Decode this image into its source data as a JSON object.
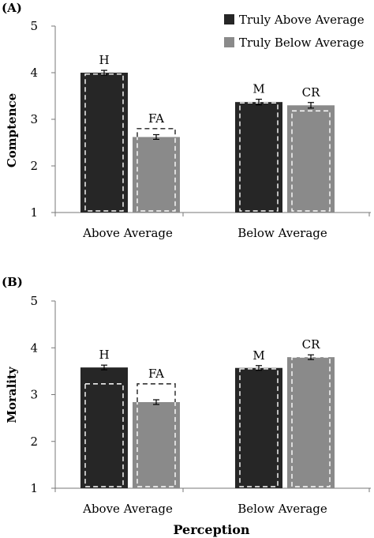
{
  "chart_data": [
    {
      "type": "bar",
      "panel_label": "(A)",
      "ylabel": "Comptence",
      "xlabel": "",
      "ylim": [
        1,
        5
      ],
      "yticks": [
        "1",
        "2",
        "3",
        "4",
        "5"
      ],
      "categories": [
        "Above Average",
        "Below Average"
      ],
      "series": [
        {
          "name": "Truly Above Average",
          "color": "#262626",
          "values": [
            4.0,
            3.37
          ],
          "errors": [
            0.05,
            0.06
          ],
          "dashed_values": [
            3.97,
            3.35
          ]
        },
        {
          "name": "Truly Below Average",
          "color": "#8a8a8a",
          "values": [
            2.62,
            3.3
          ],
          "errors": [
            0.05,
            0.06
          ],
          "dashed_values": [
            2.8,
            3.18
          ]
        }
      ],
      "annotations": [
        [
          "H",
          "FA"
        ],
        [
          "M",
          "CR"
        ]
      ],
      "legend": "top-right",
      "grid": false
    },
    {
      "type": "bar",
      "panel_label": "(B)",
      "ylabel": "Morality",
      "xlabel": "Perception",
      "ylim": [
        1,
        5
      ],
      "yticks": [
        "1",
        "2",
        "3",
        "4",
        "5"
      ],
      "categories": [
        "Above Average",
        "Below Average"
      ],
      "series": [
        {
          "name": "Truly Above Average",
          "color": "#262626",
          "values": [
            3.58,
            3.57
          ],
          "errors": [
            0.05,
            0.05
          ],
          "dashed_values": [
            3.23,
            3.55
          ]
        },
        {
          "name": "Truly Below Average",
          "color": "#8a8a8a",
          "values": [
            2.84,
            3.8
          ],
          "errors": [
            0.05,
            0.05
          ],
          "dashed_values": [
            3.23,
            3.8
          ]
        }
      ],
      "annotations": [
        [
          "H",
          "FA"
        ],
        [
          "M",
          "CR"
        ]
      ],
      "legend": "none",
      "grid": false
    }
  ]
}
